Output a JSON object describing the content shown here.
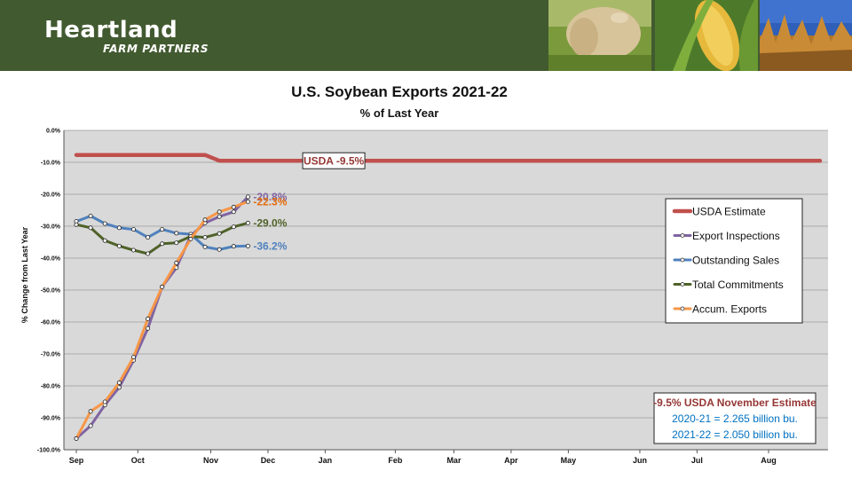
{
  "brand": {
    "name": "Heartland",
    "tagline": "FARM PARTNERS"
  },
  "header_images": [
    "cattle-photo",
    "corn-photo",
    "soybean-field-photo"
  ],
  "colors": {
    "header_green": "#425a30",
    "plot_bg": "#d9d9d9",
    "usda": "#c0504d",
    "inspections": "#8064a2",
    "outstanding": "#4f81bd",
    "commitments": "#4f6228",
    "accum": "#f79646",
    "note_red": "#953735",
    "note_blue": "#0070c0"
  },
  "chart_data": {
    "type": "line",
    "title": "U.S. Soybean Exports 2021-22",
    "subtitle": "% of Last Year",
    "ylabel": "% Change from Last Year",
    "ylim": [
      -100,
      0
    ],
    "yticks": [
      0,
      -10,
      -20,
      -30,
      -40,
      -50,
      -60,
      -70,
      -80,
      -90,
      -100
    ],
    "ytick_labels": [
      "0.0%",
      "-10.0%",
      "-20.0%",
      "-30.0%",
      "-40.0%",
      "-50.0%",
      "-60.0%",
      "-70.0%",
      "-80.0%",
      "-90.0%",
      "-100.0%"
    ],
    "x_months": [
      "Sep",
      "Oct",
      "Nov",
      "Dec",
      "Jan",
      "Feb",
      "Mar",
      "Apr",
      "May",
      "Jun",
      "Jul",
      "Aug"
    ],
    "xlim": [
      1,
      53
    ],
    "month_start_weeks": [
      1,
      5.3,
      10.4,
      14.4,
      18.4,
      23.3,
      27.4,
      31.4,
      35.4,
      40.4,
      44.4,
      49.4
    ],
    "grid": true,
    "legend_position": "right",
    "series": [
      {
        "name": "USDA Estimate",
        "color": "#c0504d",
        "markers": false,
        "x": [
          1,
          10,
          11,
          53
        ],
        "y": [
          -7.7,
          -7.7,
          -9.5,
          -9.5
        ]
      },
      {
        "name": "Export Inspections",
        "color": "#8064a2",
        "markers": true,
        "x": [
          1,
          2,
          3,
          4,
          5,
          6,
          7,
          8,
          9,
          10,
          11,
          12,
          13
        ],
        "y": [
          -96.5,
          -92.5,
          -86,
          -80.5,
          -72,
          -62,
          -49,
          -43,
          -33,
          -29,
          -27,
          -25.5,
          -20.8
        ]
      },
      {
        "name": "Outstanding Sales",
        "color": "#4f81bd",
        "markers": true,
        "x": [
          1,
          2,
          3,
          4,
          5,
          6,
          7,
          8,
          9,
          10,
          11,
          12,
          13
        ],
        "y": [
          -28.5,
          -26.8,
          -29.2,
          -30.5,
          -31,
          -33.5,
          -31,
          -32.2,
          -32.5,
          -36.5,
          -37.3,
          -36.3,
          -36.2
        ]
      },
      {
        "name": "Total Commitments",
        "color": "#4f6228",
        "markers": true,
        "x": [
          1,
          2,
          3,
          4,
          5,
          6,
          7,
          8,
          9,
          10,
          11,
          12,
          13
        ],
        "y": [
          -29.5,
          -30.5,
          -34.5,
          -36.2,
          -37.5,
          -38.6,
          -35.5,
          -35.2,
          -33.2,
          -33.5,
          -32.3,
          -30.2,
          -29.0
        ]
      },
      {
        "name": "Accum. Exports",
        "color": "#f79646",
        "markers": true,
        "x": [
          1,
          2,
          3,
          4,
          5,
          6,
          7,
          8,
          9,
          10,
          11,
          12,
          13
        ],
        "y": [
          -96.5,
          -88,
          -85,
          -79,
          -71,
          -59,
          -49,
          -41.5,
          -34,
          -28,
          -25.5,
          -24,
          -22.3
        ]
      }
    ],
    "end_labels": [
      {
        "text": "-20.8%",
        "value": -20.8,
        "color": "#8064a2"
      },
      {
        "text": "-22.3%",
        "value": -22.3,
        "color": "#e46c0a"
      },
      {
        "text": "-29.0%",
        "value": -29.0,
        "color": "#4f6228"
      },
      {
        "text": "-36.2%",
        "value": -36.2,
        "color": "#4f81bd"
      }
    ],
    "annotation": {
      "text": "USDA -9.5%",
      "x": 19,
      "y": -9.5
    },
    "note": {
      "lines": [
        "-9.5% USDA November Estimate",
        "2020-21 = 2.265 billion bu.",
        "2021-22 = 2.050 billion bu."
      ]
    }
  }
}
